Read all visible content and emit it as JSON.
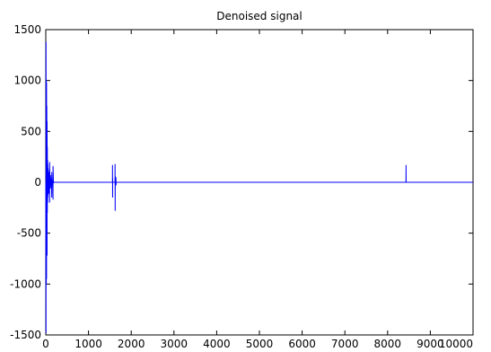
{
  "chart_data": {
    "type": "line",
    "title": "Denoised signal",
    "xlabel": "",
    "ylabel": "",
    "xlim": [
      0,
      10000
    ],
    "ylim": [
      -1500,
      1500
    ],
    "grid": false,
    "x_ticks": [
      0,
      1000,
      2000,
      3000,
      4000,
      5000,
      6000,
      7000,
      8000,
      9000,
      10000
    ],
    "y_ticks": [
      -1500,
      -1000,
      -500,
      0,
      500,
      1000,
      1500
    ],
    "series": [
      {
        "color": "#0000ff",
        "x": [
          0,
          6,
          6,
          12,
          12,
          18,
          18,
          24,
          24,
          30,
          30,
          36,
          36,
          42,
          42,
          48,
          48,
          54,
          54,
          60,
          60,
          66,
          66,
          72,
          72,
          80,
          80,
          90,
          90,
          100,
          100,
          110,
          110,
          120,
          120,
          130,
          130,
          140,
          140,
          150,
          150,
          160,
          160,
          170,
          170,
          180,
          180,
          200,
          1560,
          1562,
          1564,
          1566,
          1568,
          1570,
          1620,
          1622,
          1624,
          1626,
          1628,
          1630,
          1640,
          1642,
          1644,
          1646,
          1650,
          8430,
          8432,
          8434,
          8436,
          10000
        ],
        "y": [
          0,
          -1480,
          1380,
          -1000,
          1000,
          -950,
          980,
          -700,
          750,
          -720,
          600,
          -300,
          350,
          -200,
          220,
          -150,
          180,
          -120,
          140,
          -100,
          120,
          -80,
          90,
          -110,
          100,
          -60,
          80,
          -200,
          200,
          -40,
          50,
          -60,
          70,
          -30,
          40,
          -20,
          30,
          -150,
          100,
          -30,
          20,
          -10,
          15,
          -170,
          160,
          -10,
          5,
          0,
          0,
          170,
          -150,
          40,
          0,
          0,
          0,
          180,
          -280,
          60,
          -40,
          0,
          0,
          50,
          -30,
          0,
          0,
          0,
          170,
          0,
          0,
          0
        ]
      }
    ]
  }
}
